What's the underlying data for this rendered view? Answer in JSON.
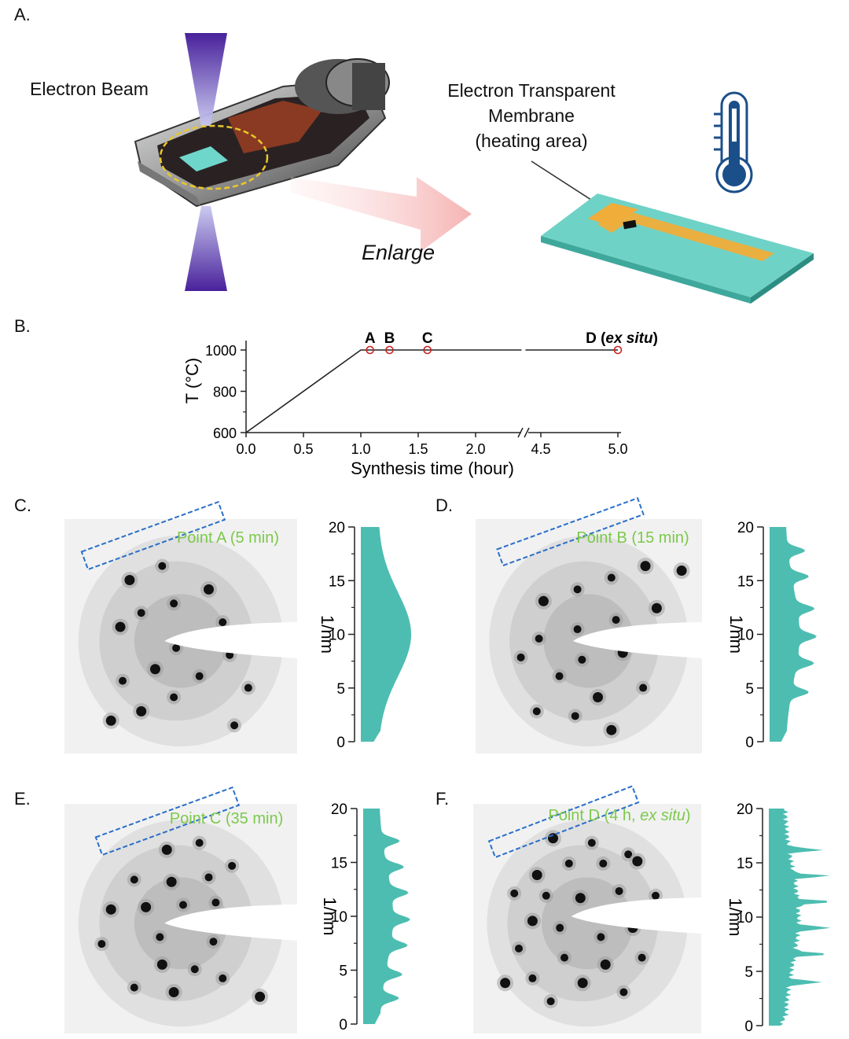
{
  "panel_labels": {
    "a": "A.",
    "b": "B.",
    "c": "C.",
    "d": "D.",
    "e": "E.",
    "f": "F."
  },
  "panel_a": {
    "beam_label": "Electron Beam",
    "membrane_line1": "Electron Transparent",
    "membrane_line2": "Membrane",
    "membrane_line3": "(heating area)",
    "arrow_label": "Enlarge",
    "colors": {
      "beam": "#4a1a9e",
      "chip": "#5cc8bd",
      "heater": "#e8a838",
      "arrow": "#f7c1c1",
      "thermometer": "#1b4f8a"
    }
  },
  "chart_data": {
    "type": "line",
    "xlabel": "Synthesis time (hour)",
    "ylabel": "T (°C)",
    "x_ticks_left": [
      "0.0",
      "0.5",
      "1.0",
      "1.5",
      "2.0"
    ],
    "x_ticks_right": [
      "4.5",
      "5.0"
    ],
    "y_ticks": [
      "600",
      "800",
      "1000"
    ],
    "ylim": [
      600,
      1000
    ],
    "axis_break": [
      2.4,
      4.4
    ],
    "points": [
      {
        "x": 0.0,
        "y": 600
      },
      {
        "x": 1.0,
        "y": 1000
      },
      {
        "x": 2.4,
        "y": 1000
      },
      {
        "x": 4.4,
        "y": 1000
      },
      {
        "x": 5.0,
        "y": 1000
      }
    ],
    "markers": [
      {
        "label": "A",
        "x": 1.08,
        "y": 1000
      },
      {
        "label": "B",
        "x": 1.25,
        "y": 1000
      },
      {
        "label": "C",
        "x": 1.58,
        "y": 1000
      },
      {
        "label": "D",
        "label_suffix": "ex situ",
        "x": 5.0,
        "y": 1000
      }
    ],
    "marker_color": "#cc2222"
  },
  "diffraction_panels": [
    {
      "title": "Point A (5 min)",
      "axis_label": "1/nm",
      "y_ticks": [
        "0",
        "5",
        "10",
        "15",
        "20"
      ],
      "profile_peaks": [
        10.5
      ],
      "profile_type": "smooth"
    },
    {
      "title": "Point B (15 min)",
      "axis_label": "1/nm",
      "y_ticks": [
        "0",
        "5",
        "10",
        "15",
        "20"
      ],
      "profile_peaks": [
        4.6,
        7.3,
        9.8,
        12.4,
        15.4,
        17.8
      ],
      "profile_type": "peaky"
    },
    {
      "title": "Point C (35 min)",
      "axis_label": "1/nm",
      "y_ticks": [
        "0",
        "5",
        "10",
        "15",
        "20"
      ],
      "profile_peaks": [
        2.4,
        4.6,
        7.3,
        9.7,
        12.2,
        14.6,
        17.0
      ],
      "profile_type": "peaky"
    },
    {
      "title_plain": "Point D (4 h, ",
      "title_italic": "ex situ",
      "title_end": ")",
      "axis_label": "1/nm",
      "y_ticks": [
        "0",
        "5",
        "10",
        "15",
        "20"
      ],
      "profile_peaks": [
        4.0,
        6.6,
        9.0,
        11.4,
        13.8,
        16.2
      ],
      "profile_type": "sharp"
    }
  ],
  "profile_color": "#4dbdb1",
  "title_color": "#7cc94a",
  "box_color": "#2a6fc8"
}
